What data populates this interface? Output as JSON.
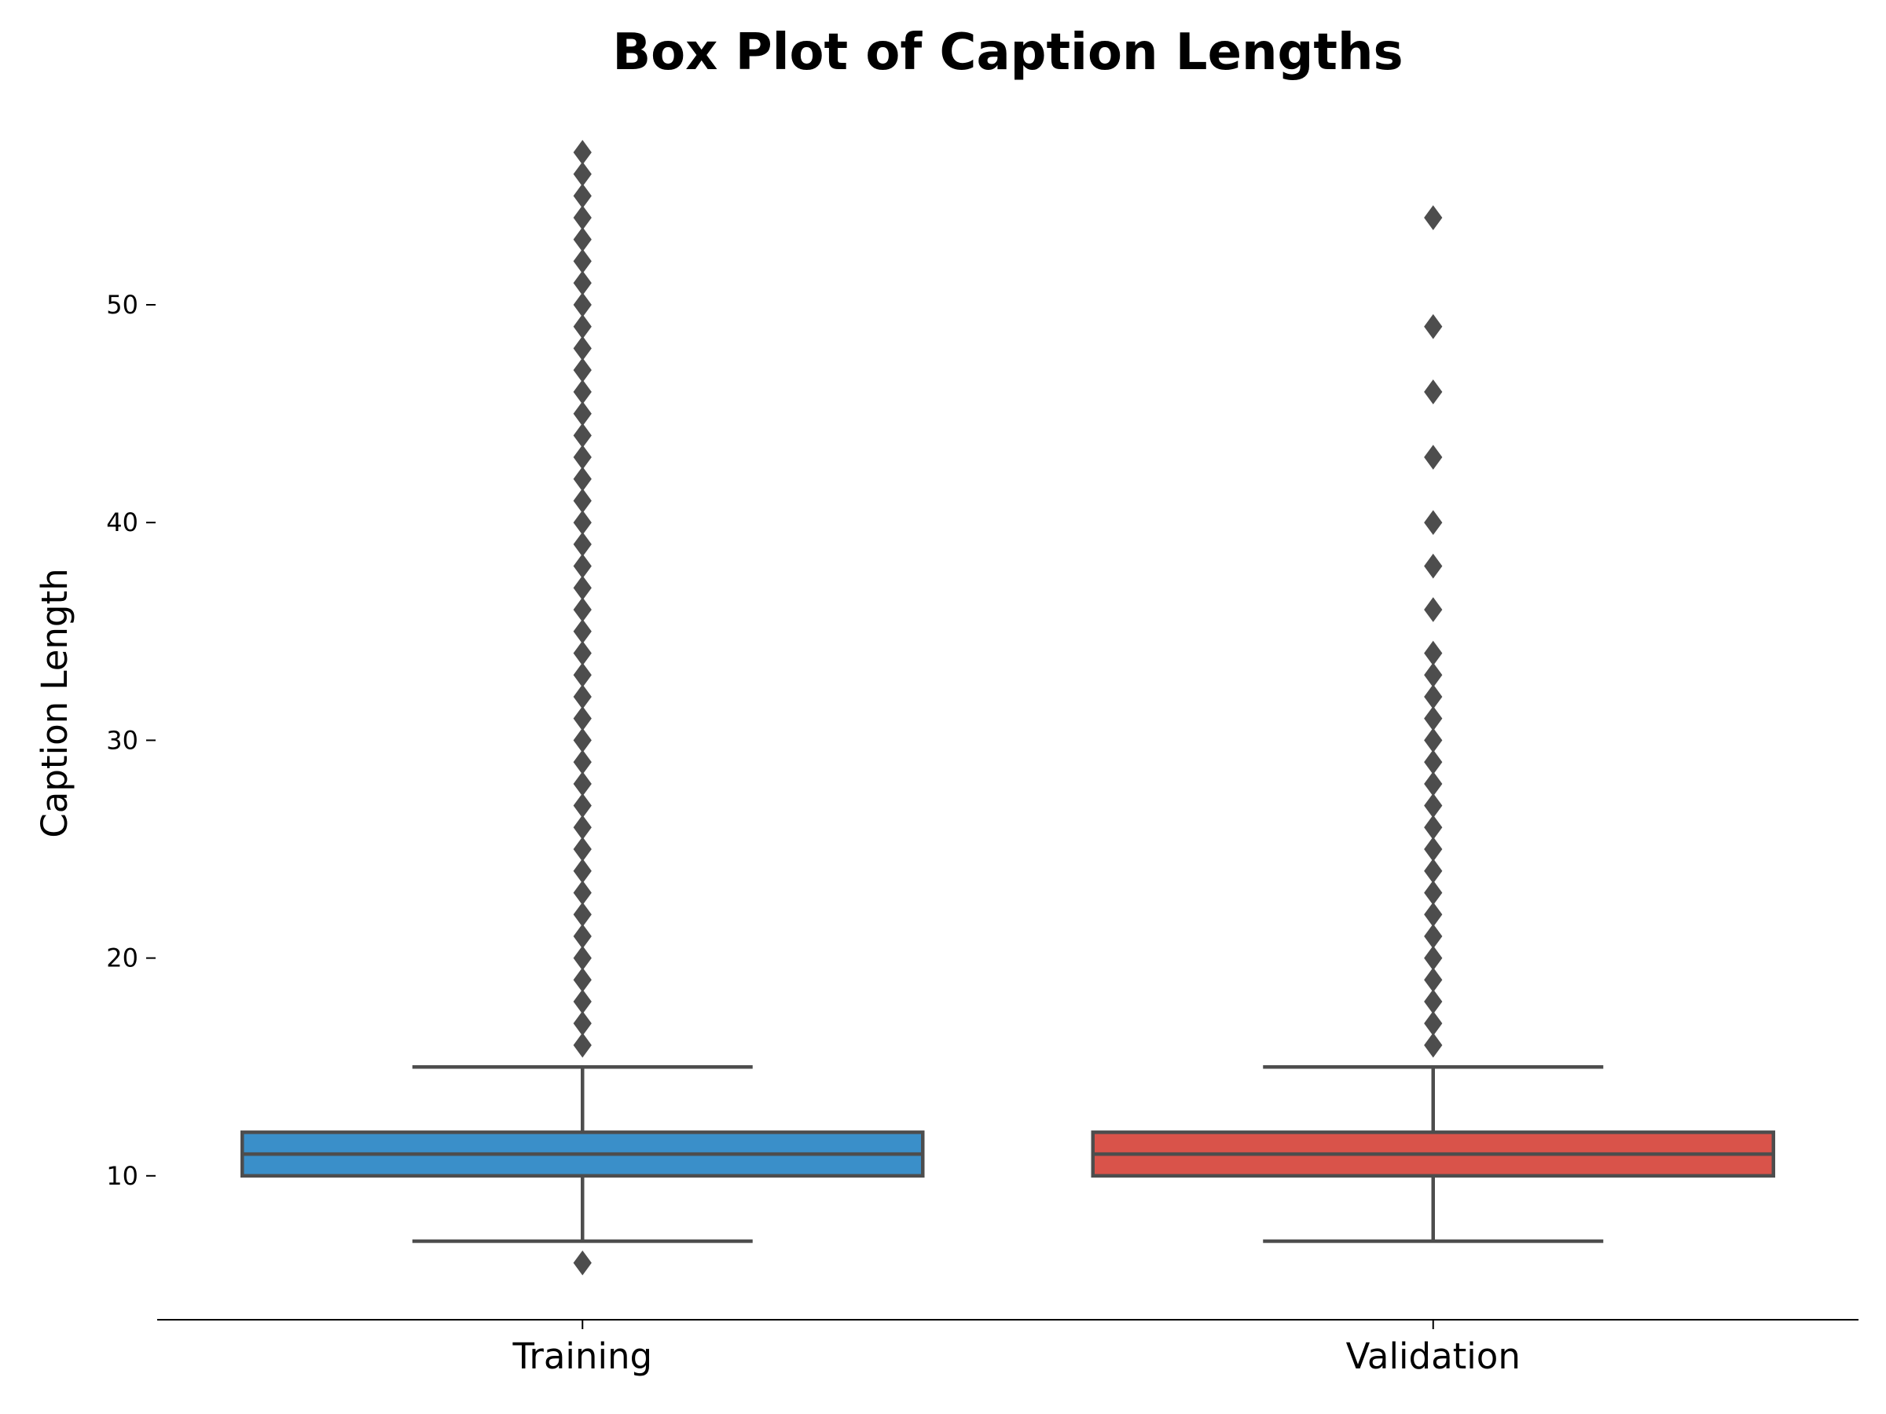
{
  "chart_data": {
    "type": "box",
    "title": "Box Plot of Caption Lengths",
    "xlabel": "",
    "ylabel": "Caption Length",
    "categories": [
      "Training",
      "Validation"
    ],
    "ylim": [
      3.4,
      58.8
    ],
    "yticks": [
      10,
      20,
      30,
      40,
      50
    ],
    "grid": false,
    "series": [
      {
        "name": "Training",
        "color": "#3a8fc9",
        "whisker_low": 7,
        "q1": 10,
        "median": 11,
        "q3": 12,
        "whisker_high": 15,
        "outliers": [
          6,
          16,
          17,
          18,
          19,
          20,
          21,
          22,
          23,
          24,
          25,
          26,
          27,
          28,
          29,
          30,
          31,
          32,
          33,
          34,
          35,
          36,
          37,
          38,
          39,
          40,
          41,
          42,
          43,
          44,
          45,
          46,
          47,
          48,
          49,
          50,
          51,
          52,
          53,
          54,
          55,
          56,
          57
        ]
      },
      {
        "name": "Validation",
        "color": "#d9534a",
        "whisker_low": 7,
        "q1": 10,
        "median": 11,
        "q3": 12,
        "whisker_high": 15,
        "outliers": [
          16,
          17,
          18,
          19,
          20,
          21,
          22,
          23,
          24,
          25,
          26,
          27,
          28,
          29,
          30,
          31,
          32,
          33,
          34,
          36,
          38,
          40,
          43,
          46,
          49,
          54
        ]
      }
    ],
    "line_color": "#4d4d4d"
  }
}
